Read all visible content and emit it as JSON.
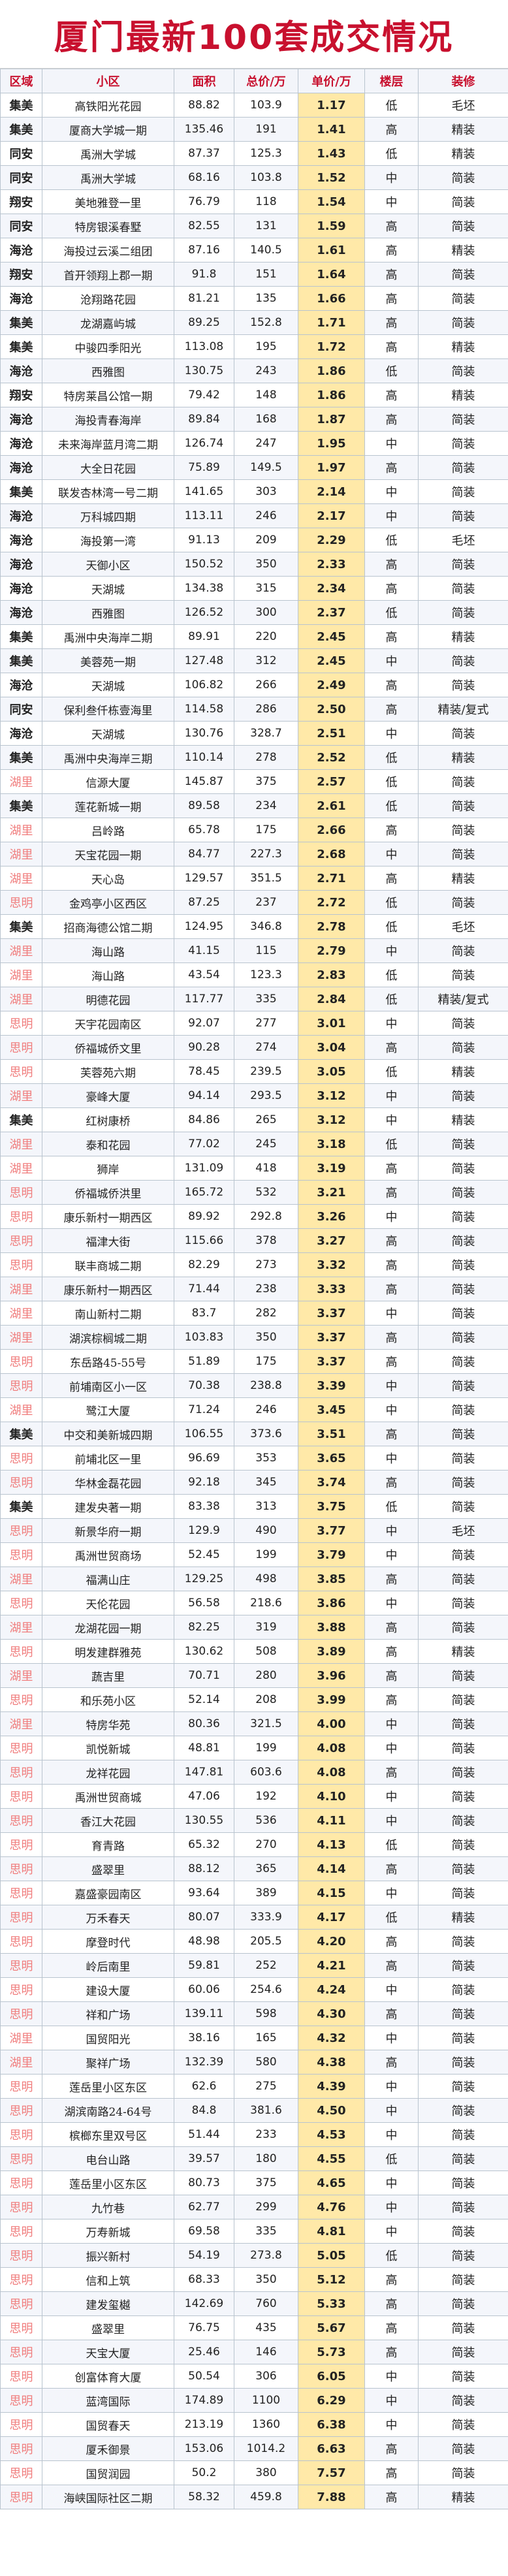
{
  "title": "厦门最新100套成交情况",
  "headers": [
    "区域",
    "小区",
    "面积",
    "总价/万",
    "单价/万",
    "楼层",
    "装修"
  ],
  "colors": {
    "title": "#c8102e",
    "unit_highlight": "#ffe9a8",
    "pink_district": "#f07d7d"
  },
  "rows": [
    [
      "集美",
      "高铁阳光花园",
      "88.82",
      "103.9",
      "1.17",
      "低",
      "毛坯"
    ],
    [
      "集美",
      "厦商大学城一期",
      "135.46",
      "191",
      "1.41",
      "高",
      "精装"
    ],
    [
      "同安",
      "禹洲大学城",
      "87.37",
      "125.3",
      "1.43",
      "低",
      "精装"
    ],
    [
      "同安",
      "禹洲大学城",
      "68.16",
      "103.8",
      "1.52",
      "中",
      "简装"
    ],
    [
      "翔安",
      "美地雅登一里",
      "76.79",
      "118",
      "1.54",
      "中",
      "简装"
    ],
    [
      "同安",
      "特房银溪春墅",
      "82.55",
      "131",
      "1.59",
      "高",
      "简装"
    ],
    [
      "海沧",
      "海投过云溪二组团",
      "87.16",
      "140.5",
      "1.61",
      "高",
      "精装"
    ],
    [
      "翔安",
      "首开领翔上郡一期",
      "91.8",
      "151",
      "1.64",
      "高",
      "简装"
    ],
    [
      "海沧",
      "沧翔路花园",
      "81.21",
      "135",
      "1.66",
      "高",
      "简装"
    ],
    [
      "集美",
      "龙湖嘉屿城",
      "89.25",
      "152.8",
      "1.71",
      "高",
      "简装"
    ],
    [
      "集美",
      "中骏四季阳光",
      "113.08",
      "195",
      "1.72",
      "高",
      "精装"
    ],
    [
      "海沧",
      "西雅图",
      "130.75",
      "243",
      "1.86",
      "低",
      "简装"
    ],
    [
      "翔安",
      "特房莱昌公馆一期",
      "79.42",
      "148",
      "1.86",
      "高",
      "精装"
    ],
    [
      "海沧",
      "海投青春海岸",
      "89.84",
      "168",
      "1.87",
      "高",
      "简装"
    ],
    [
      "海沧",
      "未来海岸蓝月湾二期",
      "126.74",
      "247",
      "1.95",
      "中",
      "简装"
    ],
    [
      "海沧",
      "大全日花园",
      "75.89",
      "149.5",
      "1.97",
      "高",
      "简装"
    ],
    [
      "集美",
      "联发杏林湾一号二期",
      "141.65",
      "303",
      "2.14",
      "中",
      "简装"
    ],
    [
      "海沧",
      "万科城四期",
      "113.11",
      "246",
      "2.17",
      "中",
      "简装"
    ],
    [
      "海沧",
      "海投第一湾",
      "91.13",
      "209",
      "2.29",
      "低",
      "毛坯"
    ],
    [
      "海沧",
      "天御小区",
      "150.52",
      "350",
      "2.33",
      "高",
      "简装"
    ],
    [
      "海沧",
      "天湖城",
      "134.38",
      "315",
      "2.34",
      "高",
      "简装"
    ],
    [
      "海沧",
      "西雅图",
      "126.52",
      "300",
      "2.37",
      "低",
      "简装"
    ],
    [
      "集美",
      "禹洲中央海岸二期",
      "89.91",
      "220",
      "2.45",
      "高",
      "精装"
    ],
    [
      "集美",
      "美蓉苑一期",
      "127.48",
      "312",
      "2.45",
      "中",
      "简装"
    ],
    [
      "海沧",
      "天湖城",
      "106.82",
      "266",
      "2.49",
      "高",
      "简装"
    ],
    [
      "同安",
      "保利叁仟栋壹海里",
      "114.58",
      "286",
      "2.50",
      "高",
      "精装/复式"
    ],
    [
      "海沧",
      "天湖城",
      "130.76",
      "328.7",
      "2.51",
      "中",
      "简装"
    ],
    [
      "集美",
      "禹洲中央海岸三期",
      "110.14",
      "278",
      "2.52",
      "低",
      "精装"
    ],
    [
      "湖里",
      "信源大厦",
      "145.87",
      "375",
      "2.57",
      "低",
      "简装"
    ],
    [
      "集美",
      "莲花新城一期",
      "89.58",
      "234",
      "2.61",
      "低",
      "简装"
    ],
    [
      "湖里",
      "吕岭路",
      "65.78",
      "175",
      "2.66",
      "高",
      "简装"
    ],
    [
      "湖里",
      "天宝花园一期",
      "84.77",
      "227.3",
      "2.68",
      "中",
      "简装"
    ],
    [
      "湖里",
      "天心岛",
      "129.57",
      "351.5",
      "2.71",
      "高",
      "精装"
    ],
    [
      "思明",
      "金鸡亭小区西区",
      "87.25",
      "237",
      "2.72",
      "低",
      "简装"
    ],
    [
      "集美",
      "招商海德公馆二期",
      "124.95",
      "346.8",
      "2.78",
      "低",
      "毛坯"
    ],
    [
      "湖里",
      "海山路",
      "41.15",
      "115",
      "2.79",
      "中",
      "简装"
    ],
    [
      "湖里",
      "海山路",
      "43.54",
      "123.3",
      "2.83",
      "低",
      "简装"
    ],
    [
      "湖里",
      "明德花园",
      "117.77",
      "335",
      "2.84",
      "低",
      "精装/复式"
    ],
    [
      "思明",
      "天宇花园南区",
      "92.07",
      "277",
      "3.01",
      "中",
      "简装"
    ],
    [
      "思明",
      "侨福城侨文里",
      "90.28",
      "274",
      "3.04",
      "高",
      "简装"
    ],
    [
      "思明",
      "芙蓉苑六期",
      "78.45",
      "239.5",
      "3.05",
      "低",
      "精装"
    ],
    [
      "湖里",
      "豪峰大厦",
      "94.14",
      "293.5",
      "3.12",
      "中",
      "简装"
    ],
    [
      "集美",
      "红树康桥",
      "84.86",
      "265",
      "3.12",
      "中",
      "精装"
    ],
    [
      "湖里",
      "泰和花园",
      "77.02",
      "245",
      "3.18",
      "低",
      "简装"
    ],
    [
      "湖里",
      "狮岸",
      "131.09",
      "418",
      "3.19",
      "高",
      "简装"
    ],
    [
      "思明",
      "侨福城侨洪里",
      "165.72",
      "532",
      "3.21",
      "高",
      "简装"
    ],
    [
      "思明",
      "康乐新村一期西区",
      "89.92",
      "292.8",
      "3.26",
      "中",
      "简装"
    ],
    [
      "思明",
      "福津大街",
      "115.66",
      "378",
      "3.27",
      "高",
      "简装"
    ],
    [
      "思明",
      "联丰商城二期",
      "82.29",
      "273",
      "3.32",
      "高",
      "简装"
    ],
    [
      "湖里",
      "康乐新村一期西区",
      "71.44",
      "238",
      "3.33",
      "高",
      "简装"
    ],
    [
      "湖里",
      "南山新村二期",
      "83.7",
      "282",
      "3.37",
      "中",
      "简装"
    ],
    [
      "湖里",
      "湖滨棕榈城二期",
      "103.83",
      "350",
      "3.37",
      "高",
      "简装"
    ],
    [
      "思明",
      "东岳路45-55号",
      "51.89",
      "175",
      "3.37",
      "高",
      "简装"
    ],
    [
      "思明",
      "前埔南区小一区",
      "70.38",
      "238.8",
      "3.39",
      "中",
      "简装"
    ],
    [
      "湖里",
      "鹭江大厦",
      "71.24",
      "246",
      "3.45",
      "中",
      "简装"
    ],
    [
      "集美",
      "中交和美新城四期",
      "106.55",
      "373.6",
      "3.51",
      "高",
      "简装"
    ],
    [
      "思明",
      "前埔北区一里",
      "96.69",
      "353",
      "3.65",
      "中",
      "简装"
    ],
    [
      "思明",
      "华林金磊花园",
      "92.18",
      "345",
      "3.74",
      "高",
      "简装"
    ],
    [
      "集美",
      "建发央著一期",
      "83.38",
      "313",
      "3.75",
      "低",
      "简装"
    ],
    [
      "思明",
      "新景华府一期",
      "129.9",
      "490",
      "3.77",
      "中",
      "毛坯"
    ],
    [
      "思明",
      "禹洲世贸商场",
      "52.45",
      "199",
      "3.79",
      "中",
      "简装"
    ],
    [
      "湖里",
      "福满山庄",
      "129.25",
      "498",
      "3.85",
      "高",
      "简装"
    ],
    [
      "思明",
      "天伦花园",
      "56.58",
      "218.6",
      "3.86",
      "中",
      "简装"
    ],
    [
      "湖里",
      "龙湖花园一期",
      "82.25",
      "319",
      "3.88",
      "高",
      "简装"
    ],
    [
      "思明",
      "明发建群雅苑",
      "130.62",
      "508",
      "3.89",
      "高",
      "精装"
    ],
    [
      "湖里",
      "蔬吉里",
      "70.71",
      "280",
      "3.96",
      "高",
      "简装"
    ],
    [
      "思明",
      "和乐苑小区",
      "52.14",
      "208",
      "3.99",
      "高",
      "简装"
    ],
    [
      "湖里",
      "特房华苑",
      "80.36",
      "321.5",
      "4.00",
      "中",
      "简装"
    ],
    [
      "思明",
      "凯悦新城",
      "48.81",
      "199",
      "4.08",
      "中",
      "简装"
    ],
    [
      "思明",
      "龙祥花园",
      "147.81",
      "603.6",
      "4.08",
      "高",
      "简装"
    ],
    [
      "思明",
      "禹洲世贸商城",
      "47.06",
      "192",
      "4.10",
      "中",
      "简装"
    ],
    [
      "思明",
      "香江大花园",
      "130.55",
      "536",
      "4.11",
      "中",
      "简装"
    ],
    [
      "思明",
      "育青路",
      "65.32",
      "270",
      "4.13",
      "低",
      "简装"
    ],
    [
      "思明",
      "盛翠里",
      "88.12",
      "365",
      "4.14",
      "高",
      "简装"
    ],
    [
      "思明",
      "嘉盛豪园南区",
      "93.64",
      "389",
      "4.15",
      "中",
      "简装"
    ],
    [
      "思明",
      "万禾春天",
      "80.07",
      "333.9",
      "4.17",
      "低",
      "精装"
    ],
    [
      "思明",
      "摩登时代",
      "48.98",
      "205.5",
      "4.20",
      "高",
      "简装"
    ],
    [
      "思明",
      "岭后南里",
      "59.81",
      "252",
      "4.21",
      "高",
      "简装"
    ],
    [
      "思明",
      "建设大厦",
      "60.06",
      "254.6",
      "4.24",
      "中",
      "简装"
    ],
    [
      "思明",
      "祥和广场",
      "139.11",
      "598",
      "4.30",
      "高",
      "简装"
    ],
    [
      "湖里",
      "国贸阳光",
      "38.16",
      "165",
      "4.32",
      "中",
      "简装"
    ],
    [
      "湖里",
      "聚祥广场",
      "132.39",
      "580",
      "4.38",
      "高",
      "简装"
    ],
    [
      "思明",
      "莲岳里小区东区",
      "62.6",
      "275",
      "4.39",
      "中",
      "简装"
    ],
    [
      "思明",
      "湖滨南路24-64号",
      "84.8",
      "381.6",
      "4.50",
      "中",
      "简装"
    ],
    [
      "思明",
      "槟榔东里双号区",
      "51.44",
      "233",
      "4.53",
      "中",
      "简装"
    ],
    [
      "思明",
      "电台山路",
      "39.57",
      "180",
      "4.55",
      "低",
      "简装"
    ],
    [
      "思明",
      "莲岳里小区东区",
      "80.73",
      "375",
      "4.65",
      "中",
      "简装"
    ],
    [
      "思明",
      "九竹巷",
      "62.77",
      "299",
      "4.76",
      "中",
      "简装"
    ],
    [
      "思明",
      "万寿新城",
      "69.58",
      "335",
      "4.81",
      "中",
      "简装"
    ],
    [
      "思明",
      "振兴新村",
      "54.19",
      "273.8",
      "5.05",
      "低",
      "简装"
    ],
    [
      "思明",
      "信和上筑",
      "68.33",
      "350",
      "5.12",
      "高",
      "简装"
    ],
    [
      "思明",
      "建发玺樾",
      "142.69",
      "760",
      "5.33",
      "高",
      "简装"
    ],
    [
      "思明",
      "盛翠里",
      "76.75",
      "435",
      "5.67",
      "高",
      "简装"
    ],
    [
      "思明",
      "天宝大厦",
      "25.46",
      "146",
      "5.73",
      "高",
      "简装"
    ],
    [
      "思明",
      "创富体育大厦",
      "50.54",
      "306",
      "6.05",
      "中",
      "简装"
    ],
    [
      "思明",
      "蓝湾国际",
      "174.89",
      "1100",
      "6.29",
      "中",
      "简装"
    ],
    [
      "思明",
      "国贸春天",
      "213.19",
      "1360",
      "6.38",
      "中",
      "简装"
    ],
    [
      "思明",
      "厦禾御景",
      "153.06",
      "1014.2",
      "6.63",
      "高",
      "简装"
    ],
    [
      "思明",
      "国贸润园",
      "50.2",
      "380",
      "7.57",
      "高",
      "简装"
    ],
    [
      "思明",
      "海峡国际社区二期",
      "58.32",
      "459.8",
      "7.88",
      "高",
      "精装"
    ]
  ]
}
